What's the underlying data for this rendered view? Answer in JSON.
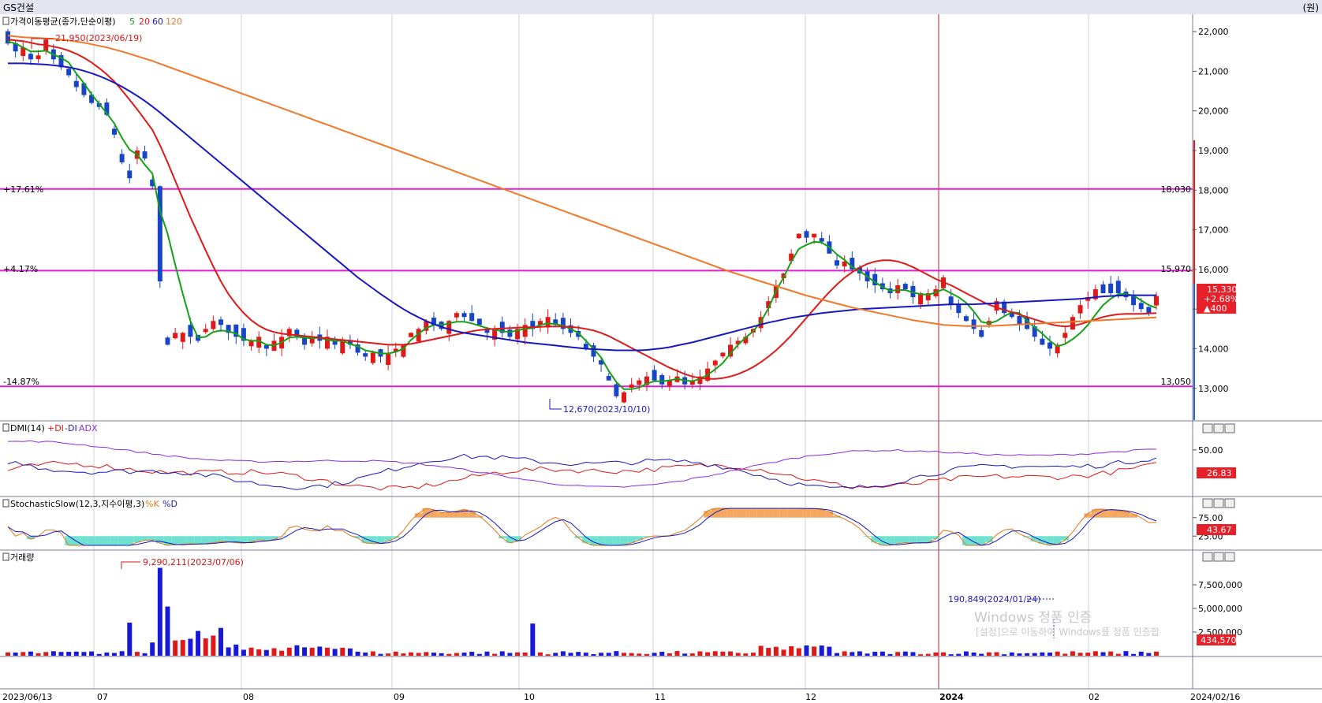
{
  "window": {
    "title": "GS건설",
    "unit": "(원)"
  },
  "panels": {
    "price": {
      "title": "가격이동평균(종가,단순이평)",
      "periods": [
        "5",
        "20",
        "60",
        "120"
      ],
      "period_colors": [
        "#16a016",
        "#e01818",
        "#1818c0",
        "#f07828"
      ]
    },
    "dmi": {
      "title": "DMI(14)",
      "legend": [
        "+DI",
        "-DI",
        "ADX"
      ],
      "legend_colors": [
        "#e01818",
        "#1818c0",
        "#8a2be2"
      ],
      "last_value": "26.83"
    },
    "stoch": {
      "title": "StochasticSlow(12,3,지수이평,3)",
      "legend": [
        "%K",
        "%D"
      ],
      "legend_colors": [
        "#e07818",
        "#1818c0"
      ],
      "last_value": "43.67"
    },
    "volume": {
      "title": "거래량",
      "last_value": "434,570"
    }
  },
  "price_annotations": {
    "high": "21,950(2023/06/19)",
    "low": "12,670(2023/10/10)",
    "levels": [
      {
        "pct": "+17.61%",
        "price": "18,030"
      },
      {
        "pct": "+4.17%",
        "price": "15,970"
      },
      {
        "pct": "-14.87%",
        "price": "13,050"
      }
    ],
    "current": {
      "price": "15,330",
      "change_pct": "+2.68%",
      "change": "▲400"
    }
  },
  "volume_annotations": {
    "max": "9,290,211(2023/07/06)",
    "cursor": "190,849(2024/01/24)"
  },
  "x_axis": {
    "labels": [
      "2023/06/13",
      "07",
      "08",
      "09",
      "10",
      "11",
      "12",
      "2024",
      "02",
      "2024/02/16"
    ]
  },
  "y_axes": {
    "price": [
      "22,000",
      "21,000",
      "20,000",
      "19,000",
      "18,000",
      "17,000",
      "16,000",
      "15,000",
      "14,000",
      "13,000"
    ],
    "dmi": [
      "50.00"
    ],
    "stoch": [
      "75.00",
      "25.00"
    ],
    "volume": [
      "7,500,000",
      "5,000,000",
      "2,500,000"
    ]
  },
  "watermark": {
    "line1": "Windows 정품 인증",
    "line2": "[설정]으로 이동하여 Windows를 정품 인증합"
  },
  "chart_data": {
    "type": "candlestick",
    "title": "GS건설",
    "x_range": [
      "2023/06/13",
      "2024/02/16"
    ],
    "ylim": [
      12200,
      22400
    ],
    "high": 21950,
    "low": 12670,
    "current": 15330,
    "levels": [
      18030,
      15970,
      13050
    ],
    "closes": [
      21700,
      21500,
      21600,
      21300,
      21400,
      21800,
      21300,
      21100,
      20900,
      20600,
      20400,
      20200,
      20100,
      19900,
      19400,
      18700,
      18300,
      19000,
      18800,
      18100,
      15700,
      14100,
      14400,
      14400,
      14300,
      14200,
      14500,
      14700,
      14600,
      14400,
      14300,
      14200,
      14200,
      14300,
      14000,
      14200,
      14300,
      14500,
      14300,
      14100,
      14300,
      14200,
      14300,
      14100,
      14200,
      14100,
      13900,
      13800,
      13900,
      13800,
      13900,
      14000,
      14100,
      14400,
      14500,
      14700,
      14600,
      14500,
      14700,
      14900,
      14800,
      14700,
      14600,
      14400,
      14500,
      14400,
      14300,
      14500,
      14600,
      14500,
      14700,
      14800,
      14600,
      14500,
      14400,
      14300,
      14000,
      13800,
      13600,
      13200,
      12800,
      12900,
      13100,
      13200,
      13300,
      13200,
      13100,
      13200,
      13300,
      13100,
      13200,
      13300,
      13500,
      13700,
      13900,
      14100,
      14200,
      14300,
      14500,
      14800,
      15200,
      15600,
      15900,
      16400,
      16900,
      16800,
      16900,
      16700,
      16400,
      16100,
      16200,
      16000,
      15900,
      15700,
      15600,
      15500,
      15400,
      15600,
      15500,
      15300,
      15400,
      15400,
      15500,
      15800,
      15100,
      14900,
      14700,
      14500,
      14300,
      14700,
      15200,
      14900,
      14800,
      14600,
      14500,
      14300,
      14100,
      14000,
      14100,
      14400,
      14800,
      15100,
      15300,
      15500,
      15400,
      15400,
      15400,
      15300,
      15100,
      15000,
      14900,
      15330
    ],
    "series": [
      {
        "name": "5",
        "values": [
          21750,
          21700,
          21600,
          21500,
          21500,
          21520,
          21420,
          21340,
          21220,
          20940,
          20700,
          20420,
          20180,
          19940,
          19680,
          19320,
          19020,
          18900,
          18640,
          18420,
          17480,
          16900,
          16120,
          15380,
          14700,
          14280,
          14300,
          14420,
          14460,
          14440,
          14380,
          14240,
          14200,
          14200,
          14100,
          14080,
          14160,
          14280,
          14300,
          14280,
          14260,
          14280,
          14220,
          14200,
          14200,
          14120,
          14060,
          13960,
          13920,
          13880,
          13880,
          13920,
          14000,
          14220,
          14380,
          14520,
          14600,
          14600,
          14640,
          14680,
          14680,
          14640,
          14580,
          14520,
          14480,
          14440,
          14420,
          14460,
          14500,
          14520,
          14600,
          14640,
          14620,
          14580,
          14500,
          14400,
          14200,
          14000,
          13780,
          13440,
          13160,
          12980,
          12980,
          13020,
          13120,
          13180,
          13180,
          13200,
          13240,
          13200,
          13180,
          13240,
          13340,
          13480,
          13640,
          13880,
          14100,
          14280,
          14440,
          14680,
          15020,
          15460,
          15800,
          16200,
          16520,
          16620,
          16700,
          16680,
          16560,
          16380,
          16240,
          16060,
          15960,
          15820,
          15680,
          15560,
          15460,
          15480,
          15480,
          15420,
          15380,
          15360,
          15420,
          15500,
          15400,
          15300,
          15160,
          14940,
          14680,
          14640,
          14700,
          14820,
          14920,
          14900,
          14700,
          14540,
          14380,
          14200,
          14060,
          14120,
          14240,
          14400,
          14600,
          14860,
          15100,
          15260,
          15380,
          15380,
          15340,
          15220,
          15100,
          15030
        ]
      },
      {
        "name": "20",
        "values": [
          21800,
          21780,
          21760,
          21720,
          21680,
          21660,
          21620,
          21580,
          21520,
          21440,
          21340,
          21220,
          21080,
          20920,
          20740,
          20520,
          20280,
          20040,
          19780,
          19520,
          19140,
          18700,
          18240,
          17780,
          17320,
          16900,
          16480,
          16080,
          15700,
          15380,
          15120,
          14900,
          14720,
          14580,
          14480,
          14420,
          14380,
          14360,
          14340,
          14320,
          14300,
          14280,
          14260,
          14240,
          14220,
          14200,
          14180,
          14160,
          14140,
          14120,
          14100,
          14100,
          14100,
          14120,
          14160,
          14200,
          14240,
          14280,
          14320,
          14360,
          14400,
          14440,
          14470,
          14490,
          14500,
          14510,
          14520,
          14530,
          14540,
          14540,
          14550,
          14560,
          14560,
          14560,
          14550,
          14530,
          14500,
          14460,
          14400,
          14320,
          14220,
          14120,
          14020,
          13920,
          13820,
          13720,
          13620,
          13520,
          13440,
          13360,
          13300,
          13260,
          13240,
          13240,
          13260,
          13300,
          13360,
          13440,
          13540,
          13660,
          13800,
          13960,
          14140,
          14340,
          14560,
          14780,
          15000,
          15220,
          15430,
          15620,
          15790,
          15930,
          16050,
          16140,
          16200,
          16230,
          16230,
          16200,
          16140,
          16060,
          15960,
          15860,
          15760,
          15680,
          15600,
          15500,
          15400,
          15300,
          15200,
          15110,
          15040,
          14980,
          14920,
          14860,
          14800,
          14740,
          14680,
          14620,
          14580,
          14560,
          14580,
          14620,
          14680,
          14740,
          14800,
          14840,
          14870,
          14880,
          14880,
          14880,
          14890,
          14900
        ]
      },
      {
        "name": "60",
        "values": [
          21200,
          21200,
          21200,
          21190,
          21180,
          21170,
          21150,
          21130,
          21100,
          21060,
          21010,
          20950,
          20880,
          20800,
          20710,
          20610,
          20500,
          20380,
          20250,
          20110,
          19960,
          19800,
          19640,
          19480,
          19320,
          19160,
          19000,
          18840,
          18680,
          18520,
          18360,
          18200,
          18040,
          17880,
          17720,
          17560,
          17400,
          17240,
          17080,
          16920,
          16760,
          16600,
          16440,
          16280,
          16120,
          15960,
          15800,
          15660,
          15520,
          15380,
          15250,
          15120,
          15000,
          14890,
          14790,
          14700,
          14620,
          14550,
          14490,
          14440,
          14400,
          14370,
          14340,
          14310,
          14280,
          14250,
          14220,
          14190,
          14160,
          14140,
          14120,
          14100,
          14080,
          14060,
          14040,
          14020,
          14000,
          13990,
          13980,
          13970,
          13960,
          13960,
          13960,
          13960,
          13970,
          13990,
          14010,
          14040,
          14080,
          14120,
          14160,
          14210,
          14260,
          14310,
          14360,
          14410,
          14460,
          14510,
          14560,
          14610,
          14660,
          14700,
          14740,
          14780,
          14810,
          14840,
          14870,
          14900,
          14920,
          14940,
          14960,
          14980,
          15000,
          15010,
          15020,
          15030,
          15040,
          15050,
          15060,
          15070,
          15080,
          15090,
          15100,
          15110,
          15120,
          15120,
          15120,
          15120,
          15130,
          15140,
          15150,
          15160,
          15170,
          15180,
          15190,
          15200,
          15210,
          15220,
          15230,
          15240,
          15250,
          15260,
          15280,
          15300,
          15320,
          15330,
          15340,
          15350,
          15350,
          15350,
          15350,
          15350
        ]
      },
      {
        "name": "120",
        "values": [
          21900,
          21880,
          21860,
          21850,
          21840,
          21830,
          21820,
          21800,
          21780,
          21750,
          21720,
          21680,
          21640,
          21600,
          21550,
          21500,
          21440,
          21380,
          21320,
          21260,
          21190,
          21120,
          21050,
          20980,
          20910,
          20840,
          20770,
          20700,
          20630,
          20560,
          20490,
          20420,
          20350,
          20280,
          20210,
          20140,
          20070,
          20000,
          19930,
          19860,
          19790,
          19720,
          19650,
          19580,
          19510,
          19440,
          19370,
          19300,
          19230,
          19160,
          19090,
          19020,
          18950,
          18880,
          18810,
          18740,
          18670,
          18600,
          18530,
          18460,
          18390,
          18320,
          18250,
          18180,
          18110,
          18040,
          17970,
          17900,
          17830,
          17760,
          17690,
          17620,
          17550,
          17480,
          17410,
          17340,
          17270,
          17200,
          17130,
          17060,
          16990,
          16920,
          16850,
          16780,
          16710,
          16640,
          16570,
          16500,
          16430,
          16360,
          16290,
          16220,
          16150,
          16080,
          16010,
          15940,
          15880,
          15820,
          15760,
          15700,
          15640,
          15580,
          15520,
          15460,
          15400,
          15340,
          15290,
          15240,
          15190,
          15140,
          15090,
          15040,
          15000,
          14960,
          14920,
          14880,
          14840,
          14800,
          14760,
          14720,
          14690,
          14660,
          14630,
          14600,
          14590,
          14580,
          14570,
          14570,
          14570,
          14570,
          14580,
          14590,
          14600,
          14610,
          14620,
          14630,
          14640,
          14650,
          14660,
          14670,
          14680,
          14690,
          14700,
          14710,
          14720,
          14730,
          14740,
          14750,
          14760,
          14770,
          14780,
          14790
        ]
      }
    ],
    "volume": {
      "max": 9290211,
      "cursor_value": 190849,
      "last": 434570
    }
  }
}
